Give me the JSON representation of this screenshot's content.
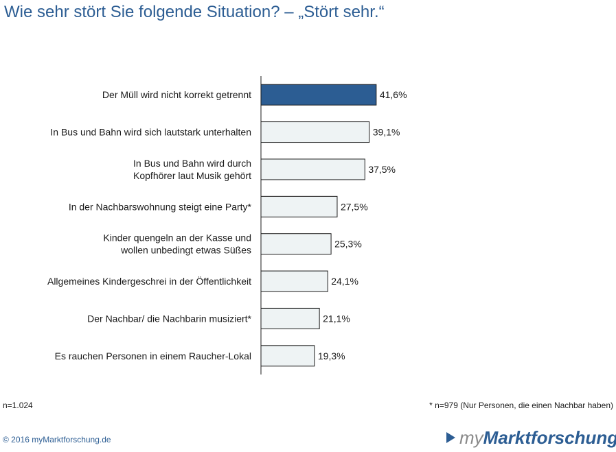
{
  "title": "Wie sehr stört Sie folgende Situation? – „Stört sehr.“",
  "chart_data": {
    "type": "bar",
    "orientation": "horizontal",
    "categories": [
      [
        "Der Müll wird nicht korrekt getrennt"
      ],
      [
        "In Bus und Bahn wird sich lautstark unterhalten"
      ],
      [
        "In Bus und Bahn wird durch",
        "Kopfhörer laut Musik gehört"
      ],
      [
        "In der Nachbarswohnung steigt eine Party*"
      ],
      [
        "Kinder quengeln an der Kasse und",
        "wollen unbedingt etwas Süßes"
      ],
      [
        "Allgemeines Kindergeschrei in der Öffentlichkeit"
      ],
      [
        "Der Nachbar/ die Nachbarin musiziert*"
      ],
      [
        "Es rauchen Personen in einem Raucher-Lokal"
      ]
    ],
    "values": [
      41.6,
      39.1,
      37.5,
      27.5,
      25.3,
      24.1,
      21.1,
      19.3
    ],
    "value_labels": [
      "41,6%",
      "39,1%",
      "37,5%",
      "27,5%",
      "25,3%",
      "24,1%",
      "21,1%",
      "19,3%"
    ],
    "highlight_index": 0,
    "colors": {
      "highlight": "#2c5d93",
      "default": "#eef3f4",
      "border": "#1a1a1a"
    },
    "xlim": [
      0,
      100
    ],
    "grid": false,
    "legend": "none"
  },
  "footer": {
    "sample": "n=1.024",
    "footnote": "* n=979 (Nur Personen, die einen Nachbar haben)",
    "copyright": "© 2016 myMarktforschung.de",
    "brand_prefix": "my",
    "brand_main": "Marktforschung"
  }
}
